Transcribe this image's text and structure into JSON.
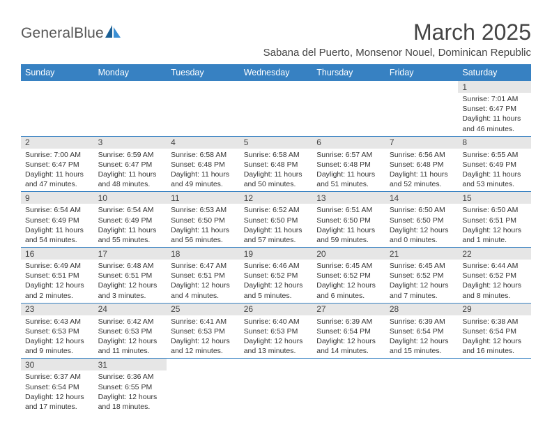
{
  "logo": {
    "text": "GeneralBlue"
  },
  "title": "March 2025",
  "subtitle": "Sabana del Puerto, Monsenor Nouel, Dominican Republic",
  "colors": {
    "header_bg": "#3781c2",
    "header_text": "#ffffff",
    "daynum_bg": "#e6e6e6",
    "border": "#3781c2",
    "text": "#333333",
    "logo_blue": "#2b7bbd"
  },
  "day_headers": [
    "Sunday",
    "Monday",
    "Tuesday",
    "Wednesday",
    "Thursday",
    "Friday",
    "Saturday"
  ],
  "weeks": [
    [
      null,
      null,
      null,
      null,
      null,
      null,
      {
        "n": "1",
        "sr": "Sunrise: 7:01 AM",
        "ss": "Sunset: 6:47 PM",
        "dl": "Daylight: 11 hours and 46 minutes."
      }
    ],
    [
      {
        "n": "2",
        "sr": "Sunrise: 7:00 AM",
        "ss": "Sunset: 6:47 PM",
        "dl": "Daylight: 11 hours and 47 minutes."
      },
      {
        "n": "3",
        "sr": "Sunrise: 6:59 AM",
        "ss": "Sunset: 6:47 PM",
        "dl": "Daylight: 11 hours and 48 minutes."
      },
      {
        "n": "4",
        "sr": "Sunrise: 6:58 AM",
        "ss": "Sunset: 6:48 PM",
        "dl": "Daylight: 11 hours and 49 minutes."
      },
      {
        "n": "5",
        "sr": "Sunrise: 6:58 AM",
        "ss": "Sunset: 6:48 PM",
        "dl": "Daylight: 11 hours and 50 minutes."
      },
      {
        "n": "6",
        "sr": "Sunrise: 6:57 AM",
        "ss": "Sunset: 6:48 PM",
        "dl": "Daylight: 11 hours and 51 minutes."
      },
      {
        "n": "7",
        "sr": "Sunrise: 6:56 AM",
        "ss": "Sunset: 6:48 PM",
        "dl": "Daylight: 11 hours and 52 minutes."
      },
      {
        "n": "8",
        "sr": "Sunrise: 6:55 AM",
        "ss": "Sunset: 6:49 PM",
        "dl": "Daylight: 11 hours and 53 minutes."
      }
    ],
    [
      {
        "n": "9",
        "sr": "Sunrise: 6:54 AM",
        "ss": "Sunset: 6:49 PM",
        "dl": "Daylight: 11 hours and 54 minutes."
      },
      {
        "n": "10",
        "sr": "Sunrise: 6:54 AM",
        "ss": "Sunset: 6:49 PM",
        "dl": "Daylight: 11 hours and 55 minutes."
      },
      {
        "n": "11",
        "sr": "Sunrise: 6:53 AM",
        "ss": "Sunset: 6:50 PM",
        "dl": "Daylight: 11 hours and 56 minutes."
      },
      {
        "n": "12",
        "sr": "Sunrise: 6:52 AM",
        "ss": "Sunset: 6:50 PM",
        "dl": "Daylight: 11 hours and 57 minutes."
      },
      {
        "n": "13",
        "sr": "Sunrise: 6:51 AM",
        "ss": "Sunset: 6:50 PM",
        "dl": "Daylight: 11 hours and 59 minutes."
      },
      {
        "n": "14",
        "sr": "Sunrise: 6:50 AM",
        "ss": "Sunset: 6:50 PM",
        "dl": "Daylight: 12 hours and 0 minutes."
      },
      {
        "n": "15",
        "sr": "Sunrise: 6:50 AM",
        "ss": "Sunset: 6:51 PM",
        "dl": "Daylight: 12 hours and 1 minute."
      }
    ],
    [
      {
        "n": "16",
        "sr": "Sunrise: 6:49 AM",
        "ss": "Sunset: 6:51 PM",
        "dl": "Daylight: 12 hours and 2 minutes."
      },
      {
        "n": "17",
        "sr": "Sunrise: 6:48 AM",
        "ss": "Sunset: 6:51 PM",
        "dl": "Daylight: 12 hours and 3 minutes."
      },
      {
        "n": "18",
        "sr": "Sunrise: 6:47 AM",
        "ss": "Sunset: 6:51 PM",
        "dl": "Daylight: 12 hours and 4 minutes."
      },
      {
        "n": "19",
        "sr": "Sunrise: 6:46 AM",
        "ss": "Sunset: 6:52 PM",
        "dl": "Daylight: 12 hours and 5 minutes."
      },
      {
        "n": "20",
        "sr": "Sunrise: 6:45 AM",
        "ss": "Sunset: 6:52 PM",
        "dl": "Daylight: 12 hours and 6 minutes."
      },
      {
        "n": "21",
        "sr": "Sunrise: 6:45 AM",
        "ss": "Sunset: 6:52 PM",
        "dl": "Daylight: 12 hours and 7 minutes."
      },
      {
        "n": "22",
        "sr": "Sunrise: 6:44 AM",
        "ss": "Sunset: 6:52 PM",
        "dl": "Daylight: 12 hours and 8 minutes."
      }
    ],
    [
      {
        "n": "23",
        "sr": "Sunrise: 6:43 AM",
        "ss": "Sunset: 6:53 PM",
        "dl": "Daylight: 12 hours and 9 minutes."
      },
      {
        "n": "24",
        "sr": "Sunrise: 6:42 AM",
        "ss": "Sunset: 6:53 PM",
        "dl": "Daylight: 12 hours and 11 minutes."
      },
      {
        "n": "25",
        "sr": "Sunrise: 6:41 AM",
        "ss": "Sunset: 6:53 PM",
        "dl": "Daylight: 12 hours and 12 minutes."
      },
      {
        "n": "26",
        "sr": "Sunrise: 6:40 AM",
        "ss": "Sunset: 6:53 PM",
        "dl": "Daylight: 12 hours and 13 minutes."
      },
      {
        "n": "27",
        "sr": "Sunrise: 6:39 AM",
        "ss": "Sunset: 6:54 PM",
        "dl": "Daylight: 12 hours and 14 minutes."
      },
      {
        "n": "28",
        "sr": "Sunrise: 6:39 AM",
        "ss": "Sunset: 6:54 PM",
        "dl": "Daylight: 12 hours and 15 minutes."
      },
      {
        "n": "29",
        "sr": "Sunrise: 6:38 AM",
        "ss": "Sunset: 6:54 PM",
        "dl": "Daylight: 12 hours and 16 minutes."
      }
    ],
    [
      {
        "n": "30",
        "sr": "Sunrise: 6:37 AM",
        "ss": "Sunset: 6:54 PM",
        "dl": "Daylight: 12 hours and 17 minutes."
      },
      {
        "n": "31",
        "sr": "Sunrise: 6:36 AM",
        "ss": "Sunset: 6:55 PM",
        "dl": "Daylight: 12 hours and 18 minutes."
      },
      null,
      null,
      null,
      null,
      null
    ]
  ]
}
